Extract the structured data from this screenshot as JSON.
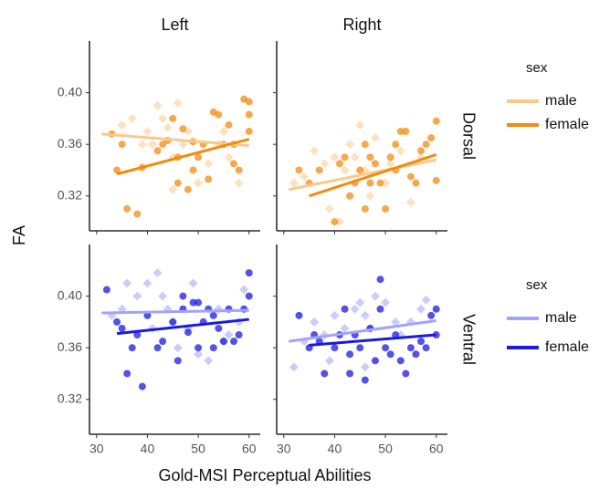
{
  "chart_data": [
    {
      "type": "scatter",
      "column": "Left",
      "row": "Dorsal",
      "y_label": "FA",
      "legend_title": "sex",
      "legend": "right",
      "xlim": [
        28.6,
        62.2
      ],
      "xticks": [
        30,
        40,
        50,
        60
      ],
      "ylim": [
        0.293,
        0.44
      ],
      "yticks": [
        0.32,
        0.36,
        {
          "value": 0.4,
          "label": "0.40"
        }
      ],
      "series": [
        {
          "name": "male",
          "color": "#fbc98c",
          "marker": "diamond",
          "x": [
            35,
            37,
            40,
            41,
            42,
            43,
            44,
            45,
            46,
            47,
            48,
            50,
            52,
            54,
            55,
            56,
            58,
            45,
            39
          ],
          "values": [
            0.375,
            0.38,
            0.37,
            0.36,
            0.39,
            0.38,
            0.373,
            0.35,
            0.392,
            0.36,
            0.37,
            0.33,
            0.345,
            0.36,
            0.37,
            0.35,
            0.33,
            0.325,
            0.36
          ],
          "fit": {
            "x": [
              31,
              60
            ],
            "values": [
              0.368,
              0.359
            ]
          }
        },
        {
          "name": "female",
          "color": "#f28c10",
          "marker": "circle",
          "x": [
            33,
            34,
            35,
            36,
            38,
            39,
            42,
            43,
            44,
            46,
            46,
            47,
            48,
            49,
            50,
            51,
            52,
            53,
            54,
            55,
            56,
            57,
            58,
            59,
            60,
            60,
            60,
            57,
            49,
            45
          ],
          "values": [
            0.368,
            0.34,
            0.36,
            0.31,
            0.306,
            0.342,
            0.355,
            0.36,
            0.363,
            0.35,
            0.33,
            0.372,
            0.325,
            0.34,
            0.35,
            0.36,
            0.333,
            0.385,
            0.383,
            0.36,
            0.375,
            0.345,
            0.34,
            0.395,
            0.393,
            0.37,
            0.383,
            0.36,
            0.362,
            0.38
          ],
          "fit": {
            "x": [
              34,
              60
            ],
            "values": [
              0.337,
              0.364
            ]
          }
        }
      ]
    },
    {
      "type": "scatter",
      "column": "Right",
      "xlim": [
        28.6,
        62.2
      ],
      "xticks": [
        30,
        40,
        50,
        60
      ],
      "ylim": [
        0.293,
        0.44
      ],
      "yticks": [
        0.32,
        0.36,
        {
          "value": 0.4,
          "label": "0.40"
        }
      ],
      "series": [
        {
          "name": "male",
          "color": "#fbc98c",
          "marker": "diamond",
          "x": [
            32,
            34,
            36,
            38,
            39,
            40,
            42,
            43,
            44,
            45,
            46,
            48,
            50,
            51,
            53,
            55,
            57,
            41,
            47
          ],
          "values": [
            0.33,
            0.335,
            0.355,
            0.345,
            0.31,
            0.35,
            0.34,
            0.36,
            0.35,
            0.375,
            0.34,
            0.365,
            0.33,
            0.345,
            0.355,
            0.315,
            0.35,
            0.3,
            0.32
          ],
          "fit": {
            "x": [
              31,
              60
            ],
            "values": [
              0.325,
              0.348
            ]
          }
        },
        {
          "name": "female",
          "color": "#f28c10",
          "marker": "circle",
          "x": [
            33,
            35,
            37,
            40,
            41,
            42,
            43,
            44,
            45,
            46,
            46,
            47,
            48,
            49,
            50,
            51,
            52,
            53,
            54,
            55,
            56,
            57,
            58,
            59,
            60,
            60,
            52,
            47
          ],
          "values": [
            0.34,
            0.33,
            0.34,
            0.3,
            0.345,
            0.35,
            0.32,
            0.33,
            0.34,
            0.31,
            0.36,
            0.35,
            0.345,
            0.33,
            0.31,
            0.35,
            0.34,
            0.37,
            0.37,
            0.335,
            0.33,
            0.355,
            0.36,
            0.365,
            0.378,
            0.332,
            0.36,
            0.33
          ],
          "fit": {
            "x": [
              35,
              60
            ],
            "values": [
              0.32,
              0.352
            ]
          }
        }
      ]
    },
    {
      "type": "scatter",
      "row": "Ventral",
      "x_label": "Gold-MSI Perceptual Abilities",
      "legend_title": "sex",
      "legend": "right",
      "xlim": [
        28.6,
        62.2
      ],
      "xticks": [
        30,
        40,
        50,
        60
      ],
      "ylim": [
        0.293,
        0.44
      ],
      "yticks": [
        0.32,
        0.36,
        {
          "value": 0.4,
          "label": "0.40"
        }
      ],
      "series": [
        {
          "name": "male",
          "color": "#a3a3f7",
          "marker": "diamond",
          "x": [
            33,
            35,
            36,
            38,
            40,
            42,
            43,
            44,
            45,
            46,
            48,
            49,
            50,
            52,
            54,
            55,
            56,
            58,
            59,
            41
          ],
          "values": [
            0.385,
            0.39,
            0.41,
            0.4,
            0.41,
            0.418,
            0.4,
            0.39,
            0.38,
            0.36,
            0.375,
            0.41,
            0.355,
            0.35,
            0.39,
            0.365,
            0.37,
            0.38,
            0.405,
            0.375
          ],
          "fit": {
            "x": [
              31,
              60
            ],
            "values": [
              0.387,
              0.389
            ]
          }
        },
        {
          "name": "female",
          "color": "#1a1ae0",
          "marker": "circle",
          "x": [
            32,
            34,
            35,
            36,
            37,
            38,
            39,
            40,
            42,
            43,
            45,
            46,
            47,
            48,
            49,
            50,
            50,
            51,
            52,
            53,
            54,
            55,
            56,
            57,
            58,
            59,
            60,
            60,
            53,
            47
          ],
          "values": [
            0.405,
            0.38,
            0.375,
            0.34,
            0.36,
            0.37,
            0.33,
            0.385,
            0.36,
            0.365,
            0.38,
            0.35,
            0.39,
            0.372,
            0.395,
            0.395,
            0.36,
            0.38,
            0.39,
            0.385,
            0.375,
            0.365,
            0.39,
            0.365,
            0.37,
            0.39,
            0.418,
            0.4,
            0.36,
            0.4
          ],
          "fit": {
            "x": [
              34,
              60
            ],
            "values": [
              0.371,
              0.382
            ]
          }
        }
      ]
    },
    {
      "type": "scatter",
      "xlim": [
        28.6,
        62.2
      ],
      "xticks": [
        30,
        40,
        50,
        60
      ],
      "ylim": [
        0.293,
        0.44
      ],
      "yticks": [
        0.32,
        0.36,
        {
          "value": 0.4,
          "label": "0.40"
        }
      ],
      "series": [
        {
          "name": "male",
          "color": "#a3a3f7",
          "marker": "diamond",
          "x": [
            32,
            34,
            36,
            38,
            40,
            42,
            44,
            45,
            46,
            47,
            48,
            50,
            52,
            53,
            55,
            57,
            58,
            46,
            39
          ],
          "values": [
            0.345,
            0.365,
            0.38,
            0.37,
            0.385,
            0.375,
            0.39,
            0.395,
            0.385,
            0.375,
            0.4,
            0.395,
            0.38,
            0.37,
            0.38,
            0.39,
            0.397,
            0.345,
            0.35
          ],
          "fit": {
            "x": [
              31,
              60
            ],
            "values": [
              0.365,
              0.381
            ]
          }
        },
        {
          "name": "female",
          "color": "#1a1ae0",
          "marker": "circle",
          "x": [
            33,
            35,
            36,
            37,
            38,
            40,
            41,
            42,
            43,
            44,
            45,
            46,
            47,
            48,
            49,
            50,
            51,
            52,
            53,
            54,
            55,
            56,
            57,
            58,
            59,
            60,
            60,
            49,
            43
          ],
          "values": [
            0.385,
            0.36,
            0.37,
            0.365,
            0.34,
            0.36,
            0.37,
            0.39,
            0.355,
            0.37,
            0.36,
            0.335,
            0.375,
            0.35,
            0.413,
            0.36,
            0.355,
            0.37,
            0.35,
            0.34,
            0.36,
            0.355,
            0.365,
            0.36,
            0.385,
            0.37,
            0.39,
            0.39,
            0.34
          ],
          "fit": {
            "x": [
              35,
              60
            ],
            "values": [
              0.362,
              0.37
            ]
          }
        }
      ]
    }
  ]
}
